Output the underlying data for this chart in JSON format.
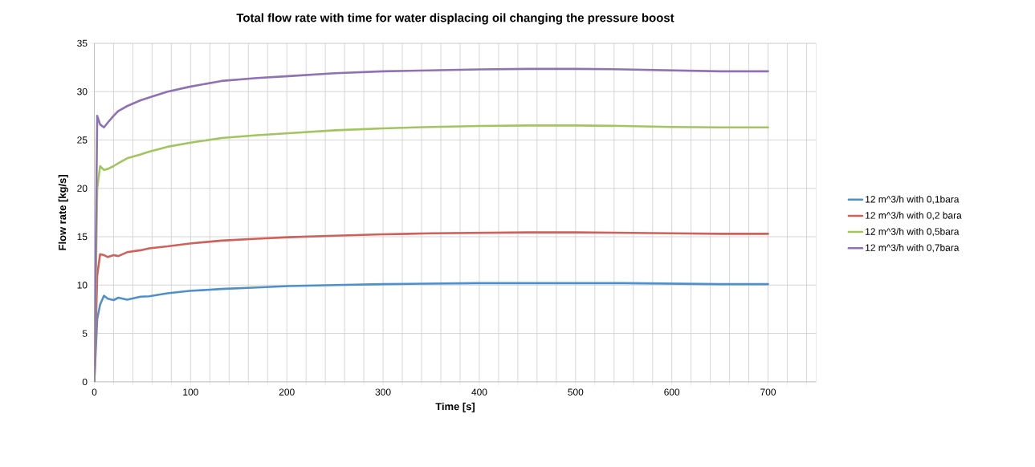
{
  "chart_data": {
    "type": "line",
    "title": "Total flow rate with time for water displacing oil changing the pressure boost",
    "xlabel": "Time [s]",
    "ylabel": "Flow rate [kg/s]",
    "xlim": [
      0,
      750
    ],
    "ylim": [
      0,
      35
    ],
    "xticks": [
      0,
      {
        "value": 20,
        "label": null
      },
      {
        "value": 40,
        "label": null
      },
      {
        "value": 60,
        "label": null
      },
      {
        "value": 80,
        "label": null
      },
      100,
      {
        "value": 120,
        "label": null
      },
      {
        "value": 140,
        "label": null
      },
      {
        "value": 160,
        "label": null
      },
      {
        "value": 180,
        "label": null
      },
      200,
      {
        "value": 220,
        "label": null
      },
      {
        "value": 240,
        "label": null
      },
      {
        "value": 260,
        "label": null
      },
      {
        "value": 280,
        "label": null
      },
      300,
      {
        "value": 320,
        "label": null
      },
      {
        "value": 340,
        "label": null
      },
      {
        "value": 360,
        "label": null
      },
      {
        "value": 380,
        "label": null
      },
      400,
      {
        "value": 420,
        "label": null
      },
      {
        "value": 440,
        "label": null
      },
      {
        "value": 460,
        "label": null
      },
      {
        "value": 480,
        "label": null
      },
      500,
      {
        "value": 520,
        "label": null
      },
      {
        "value": 540,
        "label": null
      },
      {
        "value": 560,
        "label": null
      },
      {
        "value": 580,
        "label": null
      },
      600,
      {
        "value": 620,
        "label": null
      },
      {
        "value": 640,
        "label": null
      },
      {
        "value": 660,
        "label": null
      },
      {
        "value": 680,
        "label": null
      },
      700,
      {
        "value": 720,
        "label": null
      },
      {
        "value": 740,
        "label": null
      }
    ],
    "yticks": [
      0,
      5,
      10,
      15,
      20,
      25,
      30,
      35
    ],
    "grid": true,
    "legend": "right",
    "marker": "none",
    "line_style": "solid",
    "x": [
      0,
      3,
      6,
      10,
      14,
      20,
      25,
      34,
      48,
      57,
      76,
      99,
      132,
      169,
      202,
      250,
      300,
      350,
      400,
      450,
      500,
      550,
      600,
      650,
      700
    ],
    "series": [
      {
        "name": "12 m^3/h with 0,1bara",
        "color": "#4f8fcb",
        "values": [
          0,
          6.5,
          8.0,
          8.9,
          8.6,
          8.45,
          8.7,
          8.5,
          8.8,
          8.85,
          9.15,
          9.4,
          9.6,
          9.75,
          9.9,
          10.0,
          10.1,
          10.15,
          10.2,
          10.2,
          10.2,
          10.2,
          10.15,
          10.1,
          10.1
        ]
      },
      {
        "name": "12 m^3/h with 0,2 bara",
        "color": "#d0605a",
        "values": [
          0,
          11.0,
          13.2,
          13.1,
          12.9,
          13.1,
          13.0,
          13.4,
          13.6,
          13.8,
          14.0,
          14.3,
          14.6,
          14.8,
          14.95,
          15.1,
          15.25,
          15.35,
          15.4,
          15.45,
          15.45,
          15.4,
          15.35,
          15.3,
          15.3
        ]
      },
      {
        "name": "12 m^3/h with 0,5bara",
        "color": "#a3c55f",
        "values": [
          0,
          20.0,
          22.3,
          21.9,
          22.0,
          22.3,
          22.6,
          23.1,
          23.5,
          23.8,
          24.3,
          24.7,
          25.2,
          25.5,
          25.7,
          26.0,
          26.2,
          26.35,
          26.45,
          26.5,
          26.5,
          26.45,
          26.35,
          26.3,
          26.3
        ]
      },
      {
        "name": "12 m^3/h with 0,7bara",
        "color": "#8e72b3",
        "values": [
          0,
          27.5,
          26.6,
          26.3,
          26.8,
          27.5,
          28.0,
          28.5,
          29.1,
          29.4,
          30.0,
          30.5,
          31.1,
          31.4,
          31.6,
          31.9,
          32.1,
          32.2,
          32.3,
          32.35,
          32.35,
          32.3,
          32.2,
          32.1,
          32.1
        ]
      }
    ]
  }
}
